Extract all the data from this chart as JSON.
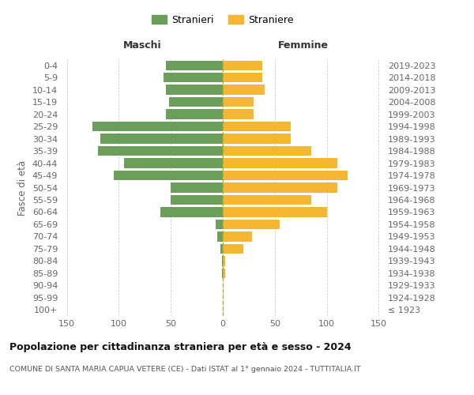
{
  "age_groups": [
    "100+",
    "95-99",
    "90-94",
    "85-89",
    "80-84",
    "75-79",
    "70-74",
    "65-69",
    "60-64",
    "55-59",
    "50-54",
    "45-49",
    "40-44",
    "35-39",
    "30-34",
    "25-29",
    "20-24",
    "15-19",
    "10-14",
    "5-9",
    "0-4"
  ],
  "birth_years": [
    "≤ 1923",
    "1924-1928",
    "1929-1933",
    "1934-1938",
    "1939-1943",
    "1944-1948",
    "1949-1953",
    "1954-1958",
    "1959-1963",
    "1964-1968",
    "1969-1973",
    "1974-1978",
    "1979-1983",
    "1984-1988",
    "1989-1993",
    "1994-1998",
    "1999-2003",
    "2004-2008",
    "2009-2013",
    "2014-2018",
    "2019-2023"
  ],
  "males": [
    0,
    0,
    0,
    1,
    1,
    2,
    5,
    7,
    60,
    50,
    50,
    105,
    95,
    120,
    118,
    125,
    55,
    52,
    55,
    57,
    55
  ],
  "females": [
    0,
    0,
    0,
    2,
    2,
    20,
    28,
    55,
    100,
    85,
    110,
    120,
    110,
    85,
    65,
    65,
    30,
    30,
    40,
    38,
    38
  ],
  "male_color": "#6a9e5a",
  "female_color": "#f5b731",
  "background_color": "#ffffff",
  "grid_color": "#cccccc",
  "center_line_color": "#b0b030",
  "title": "Popolazione per cittadinanza straniera per età e sesso - 2024",
  "subtitle": "COMUNE DI SANTA MARIA CAPUA VETERE (CE) - Dati ISTAT al 1° gennaio 2024 - TUTTITALIA.IT",
  "col_header_left": "Maschi",
  "col_header_right": "Femmine",
  "ylabel_left": "Fasce di età",
  "legend_male": "Stranieri",
  "legend_female": "Straniere",
  "xlim": 155,
  "xticks": [
    -150,
    -100,
    -50,
    0,
    50,
    100,
    150
  ],
  "xticklabels": [
    "150",
    "100",
    "50",
    "0",
    "50",
    "100",
    "150"
  ]
}
